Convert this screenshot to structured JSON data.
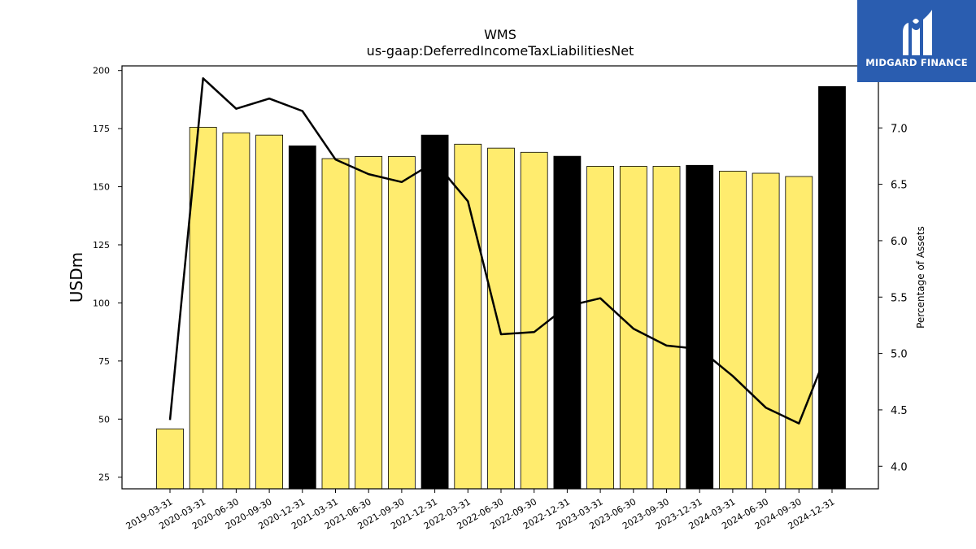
{
  "logo": {
    "text": "MIDGARD FINANCE",
    "icon": "midgard-logo-icon",
    "color": "#2a5db0"
  },
  "chart_data": {
    "type": "bar",
    "title": "WMS",
    "subtitle": "us-gaap:DeferredIncomeTaxLiabilitiesNet",
    "ylabel": "USDm",
    "y2label": "Percentage of Assets",
    "ylim": [
      20,
      202
    ],
    "y2lim": [
      3.8,
      7.55
    ],
    "yticks": [
      25,
      50,
      75,
      100,
      125,
      150,
      175,
      200
    ],
    "y2ticks": [
      "4.0",
      "4.5",
      "5.0",
      "5.5",
      "6.0",
      "6.5",
      "7.0"
    ],
    "categories": [
      "2019-03-31",
      "2020-03-31",
      "2020-06-30",
      "2020-09-30",
      "2020-12-31",
      "2021-03-31",
      "2021-06-30",
      "2021-09-30",
      "2021-12-31",
      "2022-03-31",
      "2022-06-30",
      "2022-09-30",
      "2022-12-31",
      "2023-03-31",
      "2023-06-30",
      "2023-09-30",
      "2023-12-31",
      "2024-03-31",
      "2024-06-30",
      "2024-09-30",
      "2024-12-31"
    ],
    "series": [
      {
        "type": "bar",
        "values": [
          45.8,
          175.6,
          173.2,
          172.2,
          167.6,
          162.1,
          163.0,
          163.0,
          172.2,
          168.3,
          166.6,
          164.8,
          163.1,
          158.8,
          158.8,
          158.8,
          159.2,
          156.7,
          155.8,
          154.4,
          193.1
        ],
        "colors": [
          "#ffec6e",
          "#ffec6e",
          "#ffec6e",
          "#ffec6e",
          "#000000",
          "#ffec6e",
          "#ffec6e",
          "#ffec6e",
          "#000000",
          "#ffec6e",
          "#ffec6e",
          "#ffec6e",
          "#000000",
          "#ffec6e",
          "#ffec6e",
          "#ffec6e",
          "#000000",
          "#ffec6e",
          "#ffec6e",
          "#ffec6e",
          "#000000"
        ]
      },
      {
        "type": "line",
        "axis": "right",
        "values": [
          4.41,
          7.44,
          7.17,
          7.26,
          7.15,
          6.72,
          6.59,
          6.52,
          6.7,
          6.35,
          5.17,
          5.19,
          5.42,
          5.49,
          5.22,
          5.07,
          5.04,
          4.8,
          4.52,
          4.38,
          5.12
        ],
        "color": "#000000"
      }
    ],
    "grid": false,
    "legend": "none"
  }
}
